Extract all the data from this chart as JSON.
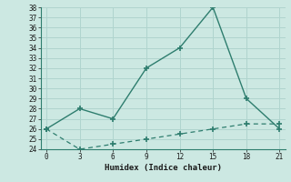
{
  "xlabel": "Humidex (Indice chaleur)",
  "line1_x": [
    0,
    3,
    6,
    9,
    12,
    15,
    18,
    21
  ],
  "line1_y": [
    26,
    28,
    27,
    32,
    34,
    38,
    29,
    26
  ],
  "line2_x": [
    0,
    3,
    6,
    9,
    12,
    15,
    18,
    21
  ],
  "line2_y": [
    26,
    24,
    24.5,
    25,
    25.5,
    26,
    26.5,
    26.5
  ],
  "line_color": "#2e7d6e",
  "xlim": [
    -0.5,
    21.5
  ],
  "ylim": [
    24,
    38
  ],
  "xticks": [
    0,
    3,
    6,
    9,
    12,
    15,
    18,
    21
  ],
  "yticks": [
    24,
    25,
    26,
    27,
    28,
    29,
    30,
    31,
    32,
    33,
    34,
    35,
    36,
    37,
    38
  ],
  "background_color": "#cce8e2",
  "grid_color": "#b0d4ce"
}
